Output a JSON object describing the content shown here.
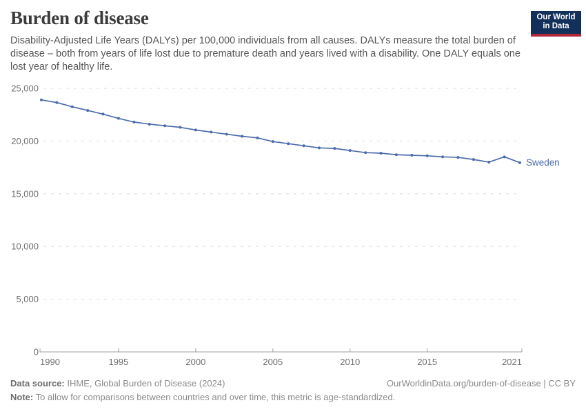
{
  "header": {
    "title": "Burden of disease",
    "subtitle": "Disability-Adjusted Life Years (DALYs) per 100,000 individuals from all causes. DALYs measure the total burden of disease – both from years of life lost due to premature death and years lived with a disability. One DALY equals one lost year of healthy life."
  },
  "logo": {
    "line1": "Our World",
    "line2": "in Data",
    "bg_color": "#12305a",
    "bar_color": "#b0293a"
  },
  "chart_data": {
    "type": "line",
    "title": "Burden of disease",
    "xlabel": "",
    "ylabel": "DALYs per 100,000 individuals",
    "x": [
      1990,
      1991,
      1992,
      1993,
      1994,
      1995,
      1996,
      1997,
      1998,
      1999,
      2000,
      2001,
      2002,
      2003,
      2004,
      2005,
      2006,
      2007,
      2008,
      2009,
      2010,
      2011,
      2012,
      2013,
      2014,
      2015,
      2016,
      2017,
      2018,
      2019,
      2020,
      2021
    ],
    "series": [
      {
        "name": "Sweden",
        "color": "#4b6cac",
        "values": [
          23900,
          23650,
          23250,
          22900,
          22550,
          22150,
          21800,
          21600,
          21450,
          21300,
          21050,
          20850,
          20650,
          20450,
          20300,
          19950,
          19750,
          19550,
          19350,
          19300,
          19100,
          18900,
          18850,
          18700,
          18650,
          18600,
          18500,
          18450,
          18250,
          18000,
          18500,
          17950
        ]
      }
    ],
    "ylim": [
      0,
      25000
    ],
    "yticks": [
      0,
      5000,
      10000,
      15000,
      20000,
      25000
    ],
    "xticks": [
      1990,
      1995,
      2000,
      2005,
      2010,
      2015,
      2021
    ],
    "grid": true,
    "legend_position": "end-of-line",
    "gridline_color": "#dedede",
    "axis_color": "#9e9e9e",
    "tick_label_color": "#6e6e6e"
  },
  "footer": {
    "source_label": "Data source:",
    "source_text": "IHME, Global Burden of Disease (2024)",
    "link": "OurWorldinData.org/burden-of-disease | CC BY",
    "note_label": "Note:",
    "note_text": "To allow for comparisons between countries and over time, this metric is age-standardized."
  }
}
